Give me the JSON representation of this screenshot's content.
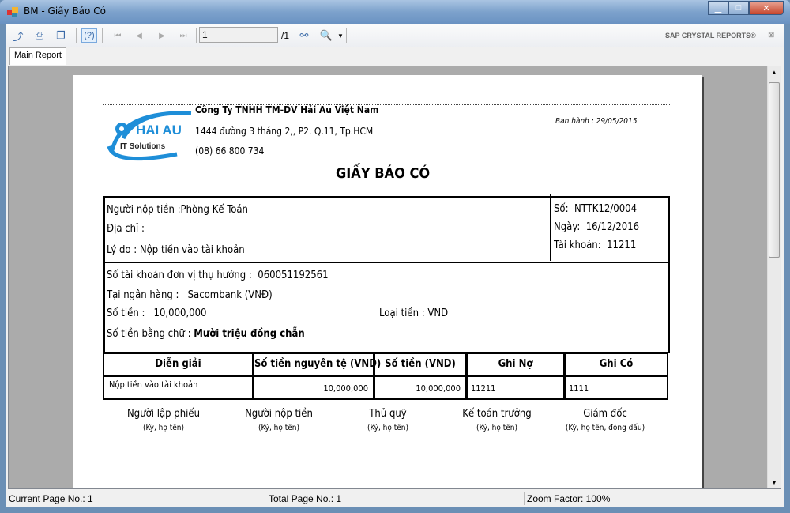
{
  "window": {
    "title": "BM - Giấy Báo Có"
  },
  "toolbar": {
    "page_value": "1",
    "page_total": "/1",
    "brand": "SAP CRYSTAL REPORTS®",
    "tab": "Main Report",
    "help": "(?)"
  },
  "company": {
    "name": "Công Ty TNHH TM-DV Hải Au Việt Nam",
    "address": "1444 đường 3 tháng 2,, P2. Q.11, Tp.HCM",
    "phone": "(08) 66 800 734",
    "logo_main": "HAI AU",
    "logo_sub": "IT Solutions",
    "issued": "Ban hành : 29/05/2015"
  },
  "doc": {
    "title": "GIẤY BÁO CÓ",
    "payer_label": "Người nộp tiền :",
    "payer": "Phòng Kế Toán",
    "address_label": "Địa chỉ :",
    "reason_label": "Lý do :",
    "reason": "Nộp tiền vào tài khoản",
    "no_label": "Số:",
    "no": "NTTK12/0004",
    "date_label": "Ngày:",
    "date": "16/12/2016",
    "acct_label": "Tài khoản:",
    "acct": "11211",
    "benef_acct_label": "Số tài khoản đơn vị thụ hưởng :",
    "benef_acct": "060051192561",
    "bank_label": "Tại ngân hàng :",
    "bank": "Sacombank (VNĐ)",
    "amount_label": "Số tiền :",
    "amount": "10,000,000",
    "currency_label": "Loại tiền :",
    "currency": "VND",
    "words_label": "Số tiền bằng chữ :",
    "words": "Mười triệu đồng chẵn"
  },
  "table": {
    "headers": [
      "Diễn giải",
      "Số tiền nguyên tệ (VND)",
      "Số tiền (VND)",
      "Ghi Nợ",
      "Ghi Có"
    ],
    "rows": [
      [
        "Nộp tiền vào tài khoản",
        "10,000,000",
        "10,000,000",
        "11211",
        "1111"
      ]
    ]
  },
  "signatures": [
    {
      "role": "Người lập phiếu",
      "note": "(Ký, họ tên)"
    },
    {
      "role": "Người nộp tiền",
      "note": "(Ký, họ tên)"
    },
    {
      "role": "Thủ quỹ",
      "note": "(Ký, họ tên)"
    },
    {
      "role": "Kế toán trưởng",
      "note": "(Ký, họ tên)"
    },
    {
      "role": "Giám đốc",
      "note": "(Ký, họ tên, đóng dấu)"
    }
  ],
  "status": {
    "current": "Current Page No.: 1",
    "total": "Total Page No.: 1",
    "zoom": "Zoom Factor: 100%"
  }
}
